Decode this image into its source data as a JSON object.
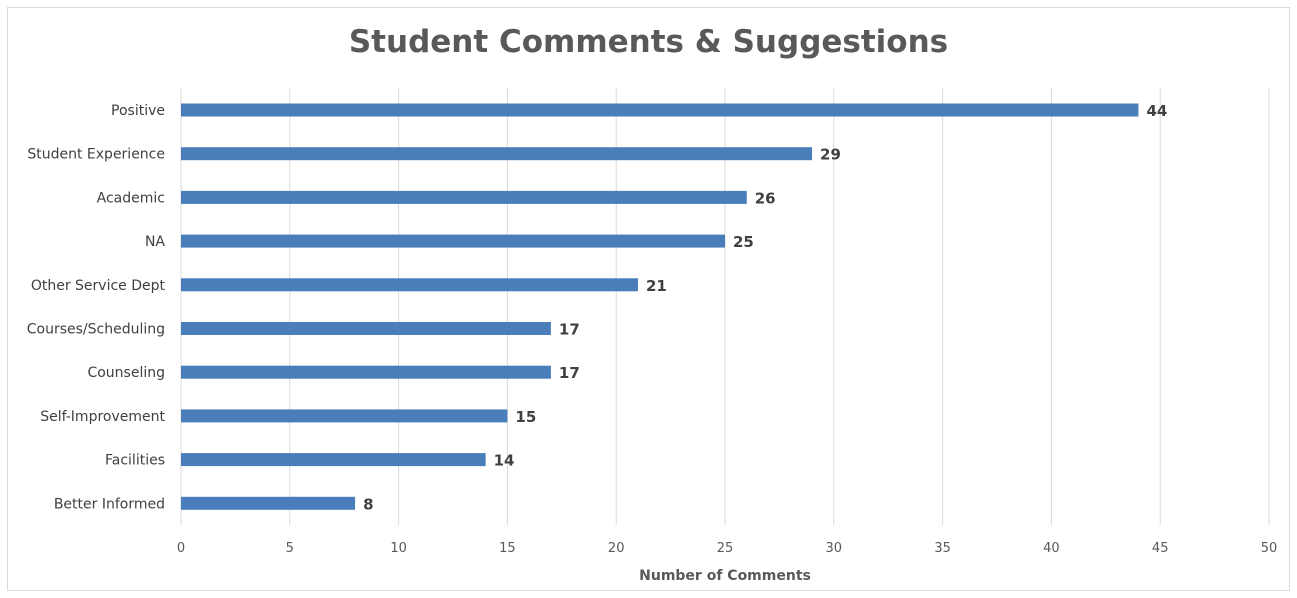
{
  "chart_data": {
    "type": "bar",
    "orientation": "horizontal",
    "title": "Student Comments & Suggestions",
    "xlabel": "Number of Comments",
    "ylabel": "",
    "categories": [
      "Positive",
      "Student Experience",
      "Academic",
      "NA",
      "Other Service Dept",
      "Courses/Scheduling",
      "Counseling",
      "Self-Improvement",
      "Facilities",
      "Better Informed"
    ],
    "values": [
      44,
      29,
      26,
      25,
      21,
      17,
      17,
      15,
      14,
      8
    ],
    "xlim": [
      0,
      50
    ],
    "xticks": [
      0,
      5,
      10,
      15,
      20,
      25,
      30,
      35,
      40,
      45,
      50
    ],
    "grid": "vertical",
    "legend": "none",
    "bar_color": "#4a7ebb",
    "data_labels": true
  }
}
